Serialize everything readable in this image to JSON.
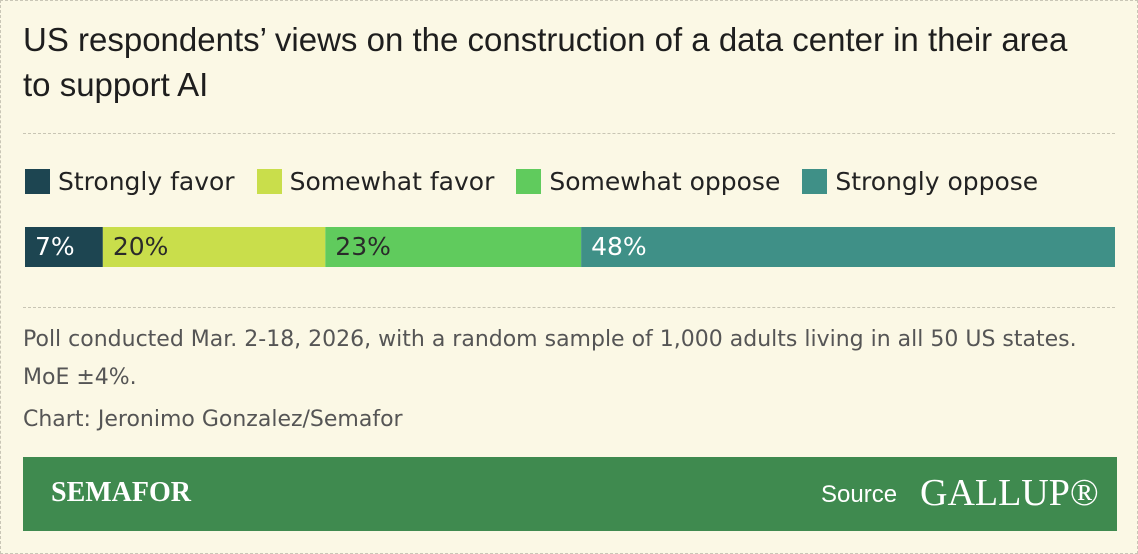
{
  "chart_data": {
    "type": "stacked-bar",
    "orientation": "horizontal",
    "title": "US respondents’ views on the construction of a data center in their area to support AI",
    "xlim": [
      0,
      98
    ],
    "series": [
      {
        "name": "Strongly favor",
        "color": "#1d4551",
        "values": [
          7
        ],
        "value_labels": [
          "7%"
        ]
      },
      {
        "name": "Somewhat favor",
        "color": "#c9de4b",
        "values": [
          20
        ],
        "value_labels": [
          "20%"
        ]
      },
      {
        "name": "Somewhat oppose",
        "color": "#60cb5d",
        "values": [
          23
        ],
        "value_labels": [
          "23%"
        ]
      },
      {
        "name": "Strongly oppose",
        "color": "#3f9087",
        "values": [
          48
        ],
        "value_labels": [
          "48%"
        ]
      }
    ],
    "note": "Poll conducted Mar. 2-18, 2026, with a random sample of 1,000 adults living in all 50 US states. MoE ±4%.",
    "credit": "Chart: Jeronimo Gonzalez/Semafor",
    "footer": {
      "brand": "SEMAFOR",
      "source_label": "Source",
      "source": "GALLUP®"
    }
  }
}
